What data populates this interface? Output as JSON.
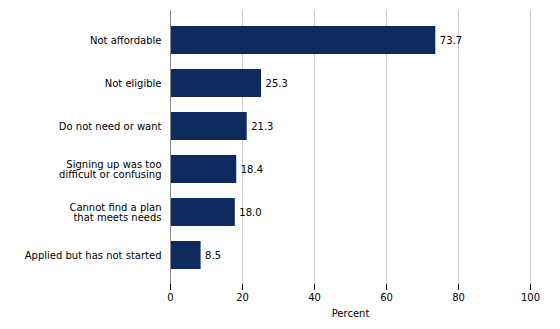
{
  "chart_data": {
    "type": "bar",
    "orientation": "horizontal",
    "categories": [
      "Applied but has not started",
      "Cannot find a plan\nthat meets needs",
      "Signing up was too\ndifficult or confusing",
      "Do not need or want",
      "Not eligible",
      "Not affordable"
    ],
    "values": [
      8.5,
      18.0,
      18.4,
      21.3,
      25.3,
      73.7
    ],
    "value_labels": [
      "8.5",
      "18.0",
      "18.4",
      "21.3",
      "25.3",
      "73.7"
    ],
    "data_labels": true,
    "color": "#0d2b5e",
    "xlabel": "Percent",
    "xlim": [
      0,
      100
    ],
    "xticks": [
      0,
      20,
      40,
      60,
      80,
      100
    ],
    "grid": true
  }
}
